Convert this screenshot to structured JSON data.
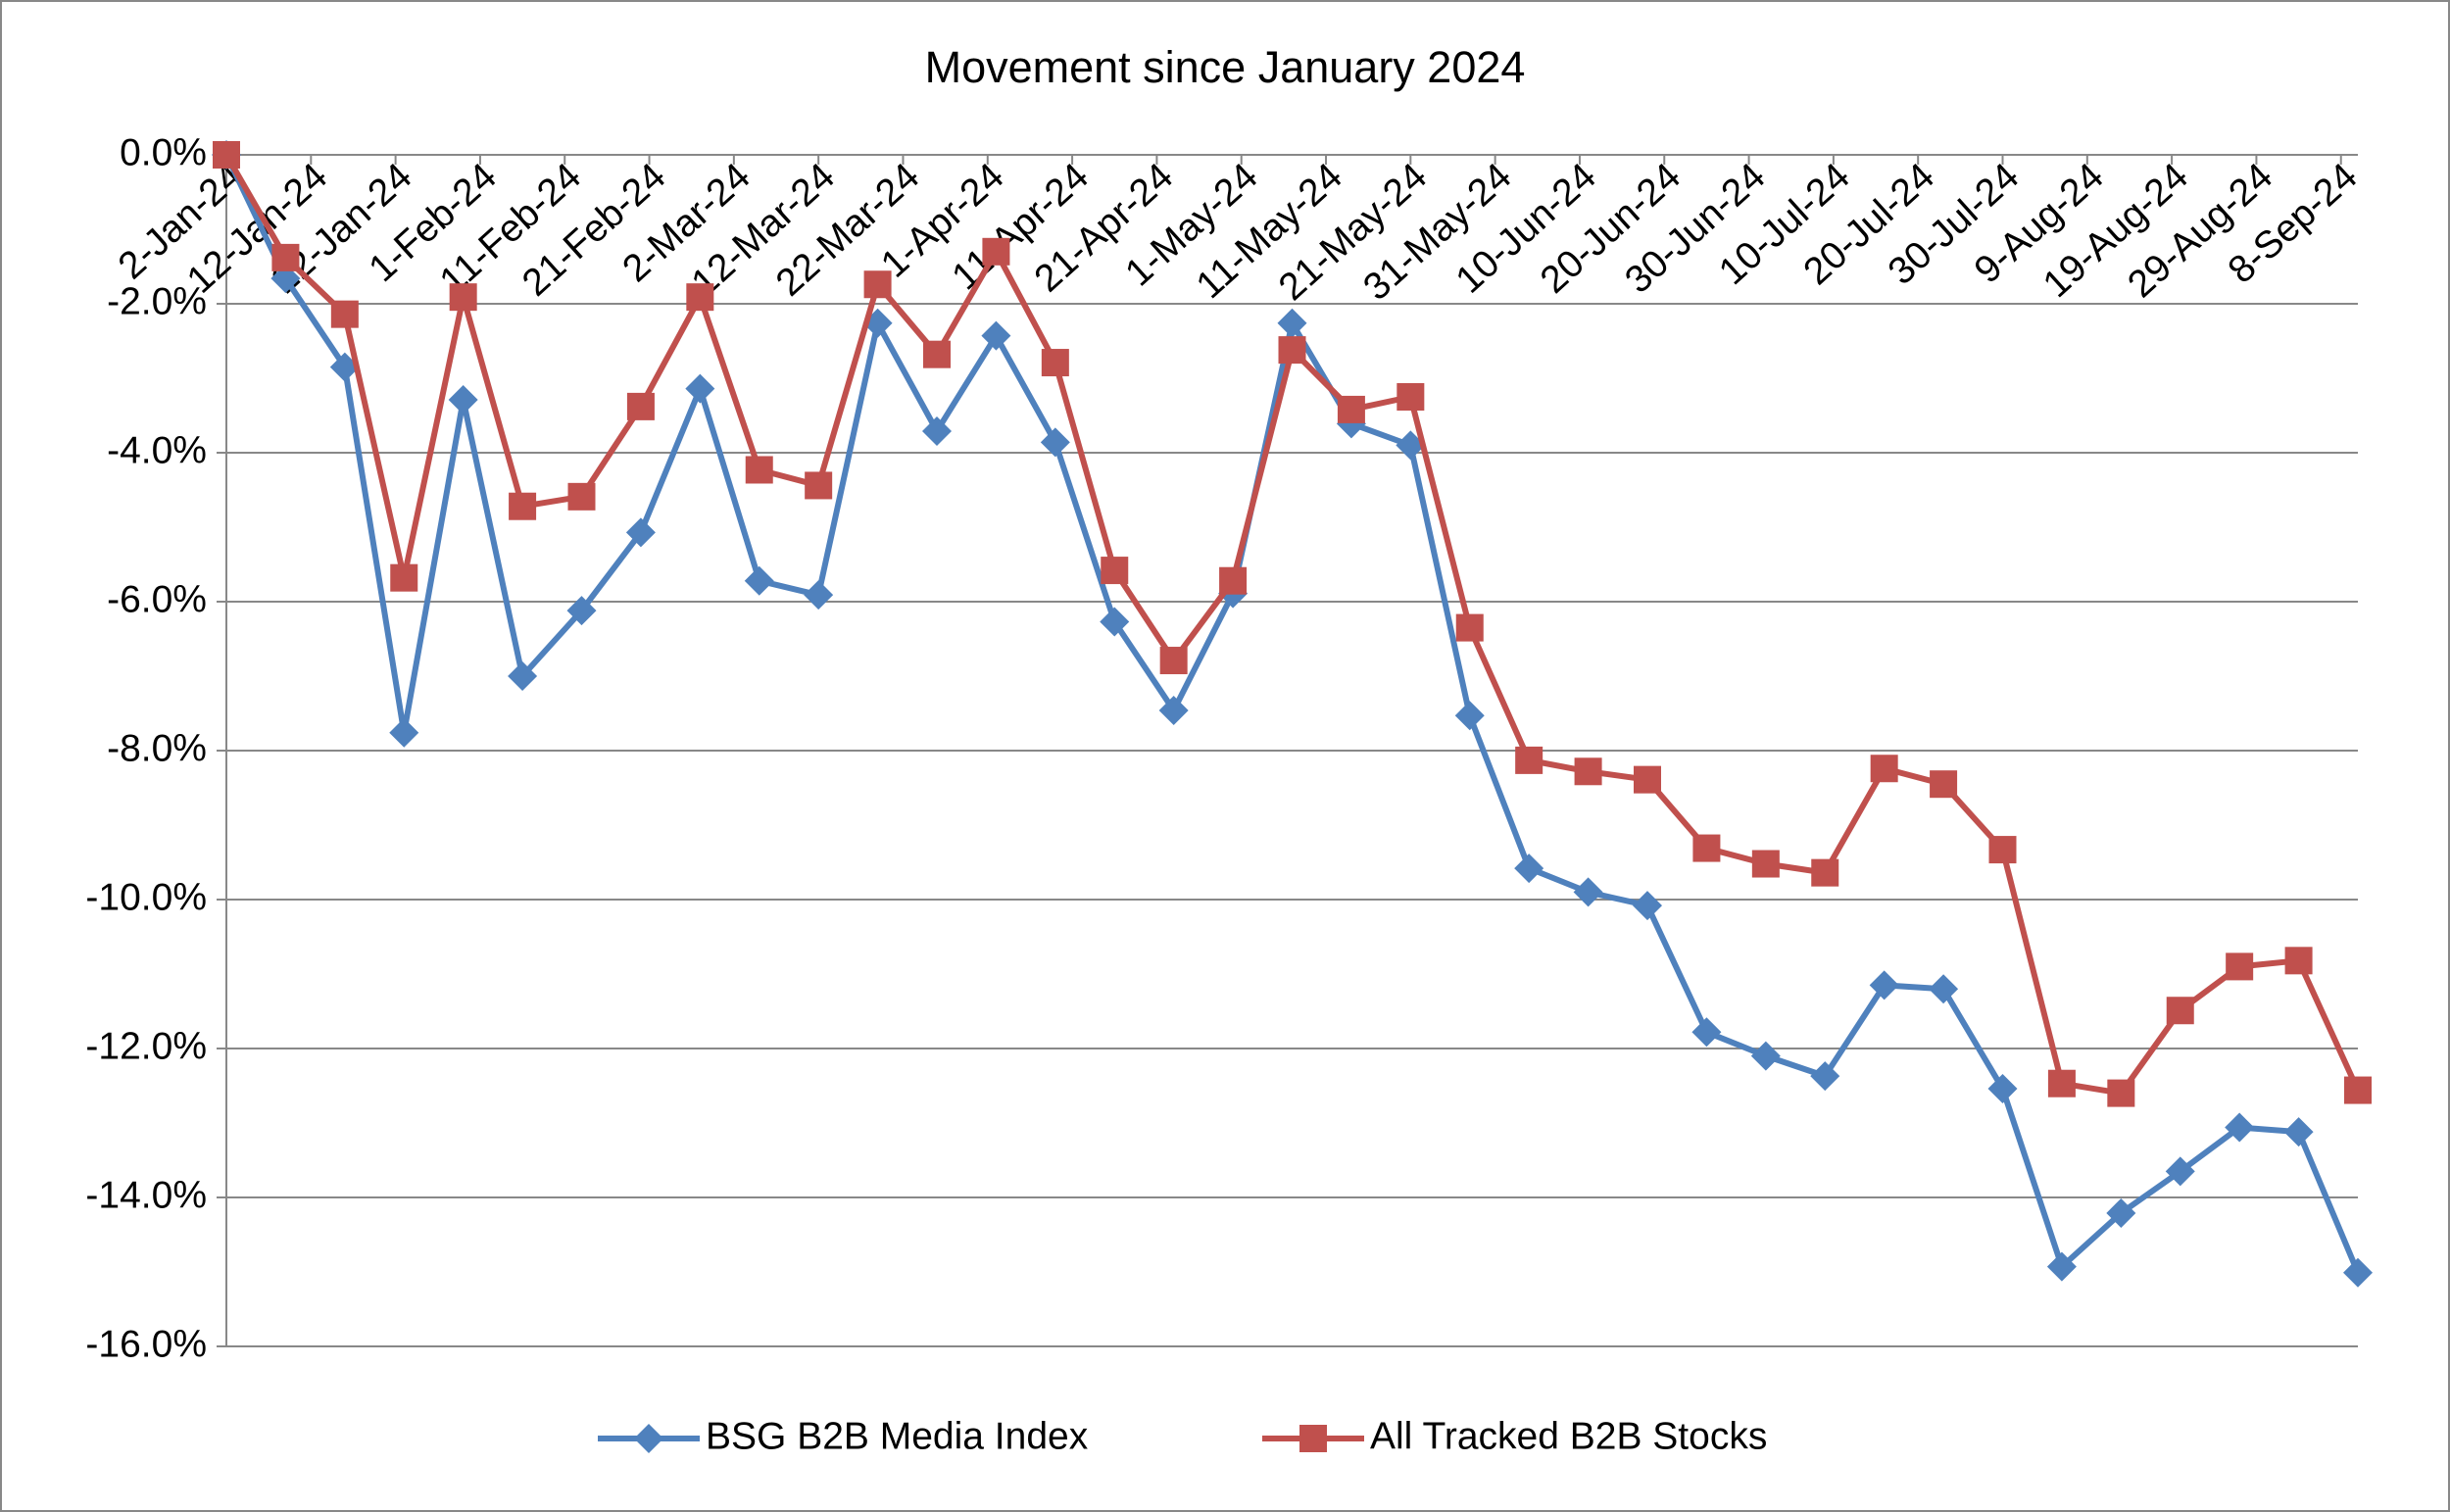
{
  "chart_data": {
    "type": "line",
    "title": "Movement since January 2024",
    "x": [
      "2024-01-02",
      "2024-01-09",
      "2024-01-16",
      "2024-01-23",
      "2024-01-30",
      "2024-02-06",
      "2024-02-13",
      "2024-02-20",
      "2024-02-27",
      "2024-03-05",
      "2024-03-12",
      "2024-03-19",
      "2024-03-26",
      "2024-04-02",
      "2024-04-09",
      "2024-04-16",
      "2024-04-23",
      "2024-04-30",
      "2024-05-07",
      "2024-05-14",
      "2024-05-21",
      "2024-05-28",
      "2024-06-04",
      "2024-06-11",
      "2024-06-18",
      "2024-06-25",
      "2024-07-02",
      "2024-07-09",
      "2024-07-16",
      "2024-07-23",
      "2024-07-30",
      "2024-08-06",
      "2024-08-13",
      "2024-08-20",
      "2024-08-27",
      "2024-09-03",
      "2024-09-10"
    ],
    "series": [
      {
        "name": "BSG B2B Media Index",
        "color": "#4f81bd",
        "marker": "diamond",
        "values": [
          0,
          -1.66,
          -2.85,
          -7.76,
          -3.29,
          -7.0,
          -6.12,
          -5.07,
          -3.14,
          -5.72,
          -5.91,
          -2.26,
          -3.71,
          -2.43,
          -3.86,
          -6.27,
          -7.46,
          -5.89,
          -2.26,
          -3.61,
          -3.9,
          -7.53,
          -9.58,
          -9.9,
          -10.08,
          -11.78,
          -12.1,
          -12.37,
          -11.15,
          -11.2,
          -12.54,
          -14.93,
          -14.21,
          -13.65,
          -13.06,
          -13.12,
          -15.01
        ]
      },
      {
        "name": "All Tracked B2B Stocks",
        "color": "#c0504d",
        "marker": "square",
        "values": [
          0,
          -1.38,
          -2.14,
          -5.68,
          -1.91,
          -4.72,
          -4.59,
          -3.38,
          -1.91,
          -4.23,
          -4.44,
          -1.74,
          -2.68,
          -1.3,
          -2.79,
          -5.58,
          -6.79,
          -5.72,
          -2.62,
          -3.42,
          -3.25,
          -6.35,
          -8.13,
          -8.28,
          -8.39,
          -9.31,
          -9.52,
          -9.64,
          -8.24,
          -8.45,
          -9.33,
          -12.47,
          -12.6,
          -11.49,
          -10.9,
          -10.82,
          -12.56
        ]
      }
    ],
    "xlim": [
      "2024-01-02",
      "2024-09-10"
    ],
    "xticks": [
      {
        "value": "2024-01-02",
        "label": "2-Jan-24"
      },
      {
        "value": "2024-01-12",
        "label": "12-Jan-24"
      },
      {
        "value": "2024-01-22",
        "label": "22-Jan-24"
      },
      {
        "value": "2024-02-01",
        "label": "1-Feb-24"
      },
      {
        "value": "2024-02-11",
        "label": "11-Feb-24"
      },
      {
        "value": "2024-02-21",
        "label": "21-Feb-24"
      },
      {
        "value": "2024-03-02",
        "label": "2-Mar-24"
      },
      {
        "value": "2024-03-12",
        "label": "12-Mar-24"
      },
      {
        "value": "2024-03-22",
        "label": "22-Mar-24"
      },
      {
        "value": "2024-04-01",
        "label": "1-Apr-24"
      },
      {
        "value": "2024-04-11",
        "label": "11-Apr-24"
      },
      {
        "value": "2024-04-21",
        "label": "21-Apr-24"
      },
      {
        "value": "2024-05-01",
        "label": "1-May-24"
      },
      {
        "value": "2024-05-11",
        "label": "11-May-24"
      },
      {
        "value": "2024-05-21",
        "label": "21-May-24"
      },
      {
        "value": "2024-05-31",
        "label": "31-May-24"
      },
      {
        "value": "2024-06-10",
        "label": "10-Jun-24"
      },
      {
        "value": "2024-06-20",
        "label": "20-Jun-24"
      },
      {
        "value": "2024-06-30",
        "label": "30-Jun-24"
      },
      {
        "value": "2024-07-10",
        "label": "10-Jul-24"
      },
      {
        "value": "2024-07-20",
        "label": "20-Jul-24"
      },
      {
        "value": "2024-07-30",
        "label": "30-Jul-24"
      },
      {
        "value": "2024-08-09",
        "label": "9-Aug-24"
      },
      {
        "value": "2024-08-19",
        "label": "19-Aug-24"
      },
      {
        "value": "2024-08-29",
        "label": "29-Aug-24"
      },
      {
        "value": "2024-09-08",
        "label": "8-Sep-24"
      }
    ],
    "ylim": [
      -16,
      0
    ],
    "yticks": [
      {
        "value": 0,
        "label": "0.0%"
      },
      {
        "value": -2,
        "label": "-2.0%"
      },
      {
        "value": -4,
        "label": "-4.0%"
      },
      {
        "value": -6,
        "label": "-6.0%"
      },
      {
        "value": -8,
        "label": "-8.0%"
      },
      {
        "value": -10,
        "label": "-10.0%"
      },
      {
        "value": -12,
        "label": "-12.0%"
      },
      {
        "value": -14,
        "label": "-14.0%"
      },
      {
        "value": -16,
        "label": "-16.0%"
      }
    ],
    "grid": true,
    "legend": "bottom"
  }
}
